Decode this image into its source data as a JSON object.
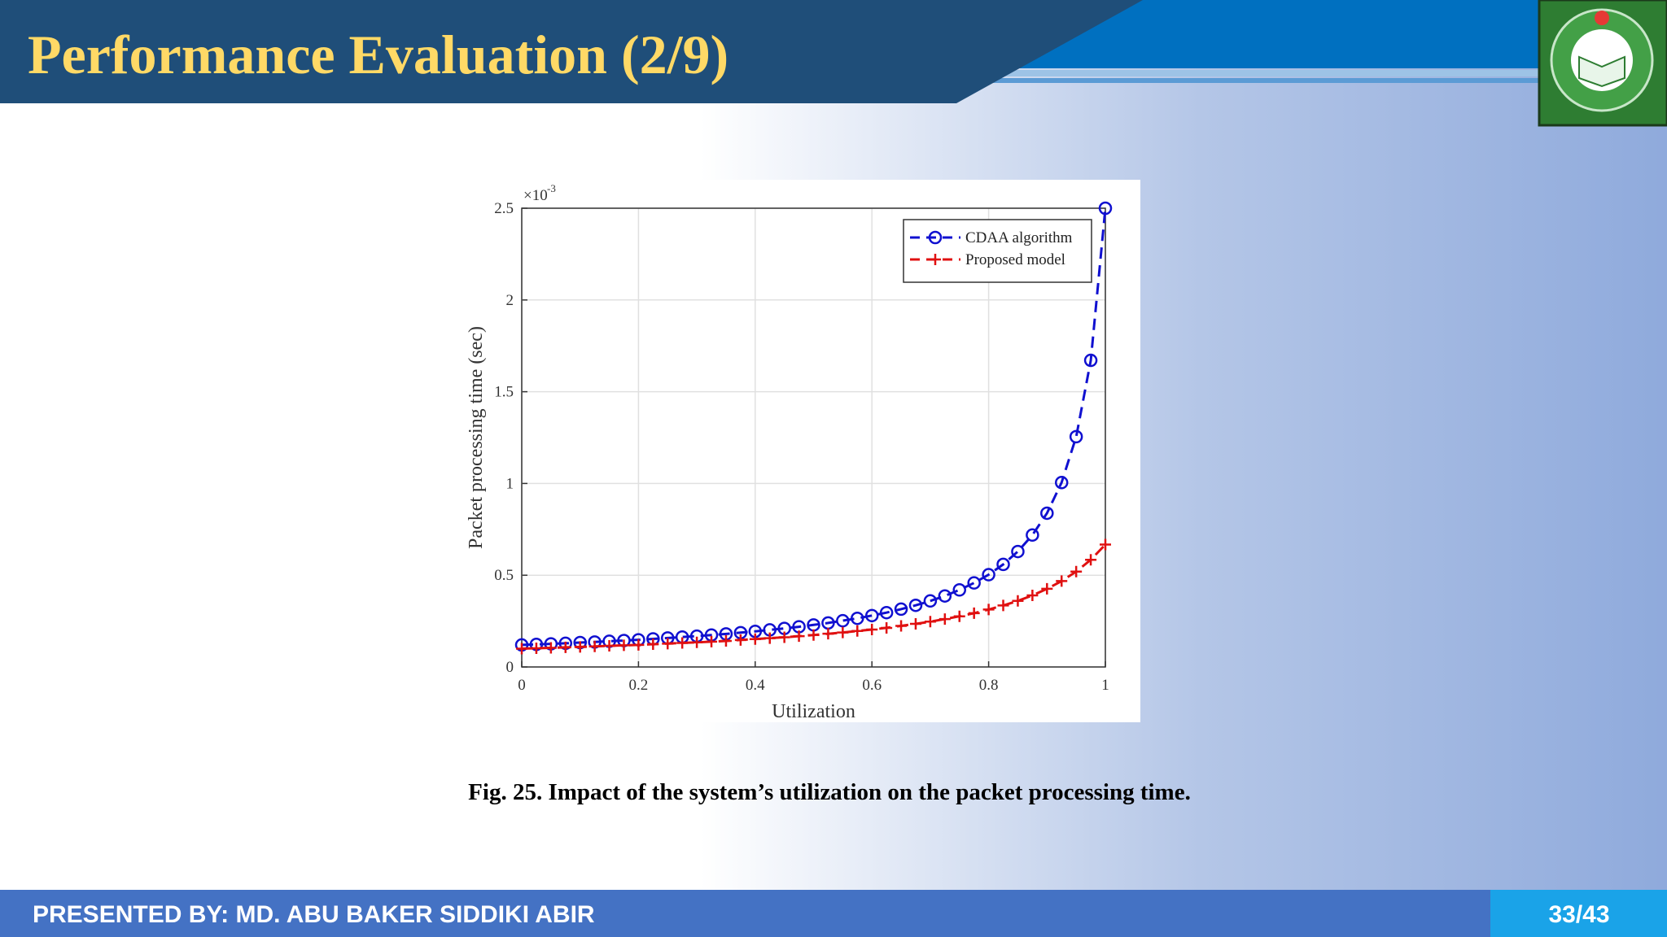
{
  "header": {
    "title": "Performance Evaluation (2/9)"
  },
  "chart_data": {
    "type": "line",
    "x_label": "Utilization",
    "y_label": "Packet processing time (sec)",
    "y_multiplier": "×10",
    "y_multiplier_exponent": "-3",
    "xlim": [
      0,
      1
    ],
    "ylim": [
      0,
      2.5
    ],
    "xticks": [
      0,
      0.2,
      0.4,
      0.6,
      0.8,
      1
    ],
    "yticks": [
      0,
      0.5,
      1,
      1.5,
      2,
      2.5
    ],
    "grid": true,
    "legend": "upper right",
    "x": [
      0,
      0.025,
      0.05,
      0.075,
      0.1,
      0.125,
      0.15,
      0.175,
      0.2,
      0.225,
      0.25,
      0.275,
      0.3,
      0.325,
      0.35,
      0.375,
      0.4,
      0.425,
      0.45,
      0.475,
      0.5,
      0.525,
      0.55,
      0.575,
      0.6,
      0.625,
      0.65,
      0.675,
      0.7,
      0.725,
      0.75,
      0.775,
      0.8,
      0.825,
      0.85,
      0.875,
      0.9,
      0.925,
      0.95,
      0.975,
      1
    ],
    "series": [
      {
        "name": "CDAA algorithm",
        "color": "#1010d0",
        "marker": "circle",
        "values": [
          0.12,
          0.123,
          0.126,
          0.129,
          0.133,
          0.136,
          0.14,
          0.144,
          0.148,
          0.153,
          0.158,
          0.163,
          0.168,
          0.174,
          0.18,
          0.187,
          0.194,
          0.202,
          0.21,
          0.219,
          0.229,
          0.24,
          0.252,
          0.265,
          0.28,
          0.296,
          0.315,
          0.336,
          0.36,
          0.387,
          0.42,
          0.458,
          0.503,
          0.559,
          0.629,
          0.719,
          0.838,
          1.005,
          1.255,
          1.671,
          2.5
        ]
      },
      {
        "name": "Proposed model",
        "color": "#e01010",
        "marker": "plus",
        "values": [
          0.1,
          0.102,
          0.104,
          0.107,
          0.109,
          0.112,
          0.115,
          0.118,
          0.12,
          0.124,
          0.127,
          0.131,
          0.134,
          0.138,
          0.142,
          0.147,
          0.152,
          0.157,
          0.162,
          0.168,
          0.174,
          0.181,
          0.188,
          0.196,
          0.204,
          0.213,
          0.224,
          0.235,
          0.247,
          0.261,
          0.276,
          0.293,
          0.313,
          0.335,
          0.36,
          0.39,
          0.426,
          0.468,
          0.52,
          0.584,
          0.667
        ]
      }
    ]
  },
  "caption": "Fig. 25. Impact of the system’s utilization on the packet processing time.",
  "footer": {
    "presenter": "PRESENTED BY: MD. ABU BAKER SIDDIKI ABIR",
    "page": "33/43"
  }
}
